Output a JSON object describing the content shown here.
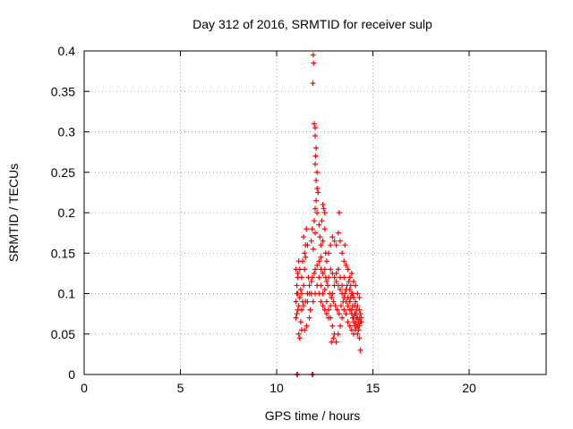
{
  "chart_data": {
    "type": "scatter",
    "title": "Day 312 of 2016, SRMTID for receiver sulp",
    "xlabel": "GPS time / hours",
    "ylabel": "SRMTID / TECUs",
    "xlim": [
      0,
      24
    ],
    "ylim": [
      0,
      0.4
    ],
    "x_ticks": [
      0,
      5,
      10,
      15,
      20
    ],
    "x_tick_labels": [
      "0",
      "5",
      "10",
      "15",
      "20"
    ],
    "y_ticks": [
      0,
      0.05,
      0.1,
      0.15,
      0.2,
      0.25,
      0.3,
      0.35,
      0.4
    ],
    "y_tick_labels": [
      "0",
      "0.05",
      "0.1",
      "0.15",
      "0.2",
      "0.25",
      "0.3",
      "0.35",
      "0.4"
    ],
    "grid": true,
    "marker": "+",
    "color": "#ff0000",
    "points": [
      [
        11.05,
        0.0
      ],
      [
        11.08,
        0.0
      ],
      [
        11.85,
        0.0
      ],
      [
        11.88,
        0.0
      ],
      [
        11.0,
        0.07
      ],
      [
        11.05,
        0.075
      ],
      [
        11.1,
        0.08
      ],
      [
        11.0,
        0.09
      ],
      [
        11.1,
        0.1
      ],
      [
        11.05,
        0.11
      ],
      [
        11.1,
        0.12
      ],
      [
        11.0,
        0.13
      ],
      [
        11.15,
        0.14
      ],
      [
        11.05,
        0.1
      ],
      [
        11.2,
        0.095
      ],
      [
        11.15,
        0.085
      ],
      [
        11.25,
        0.065
      ],
      [
        11.3,
        0.055
      ],
      [
        11.2,
        0.045
      ],
      [
        11.15,
        0.05
      ],
      [
        11.3,
        0.08
      ],
      [
        11.35,
        0.09
      ],
      [
        11.25,
        0.105
      ],
      [
        11.4,
        0.11
      ],
      [
        11.3,
        0.12
      ],
      [
        11.45,
        0.13
      ],
      [
        11.35,
        0.14
      ],
      [
        11.45,
        0.15
      ],
      [
        11.5,
        0.16
      ],
      [
        11.4,
        0.17
      ],
      [
        11.55,
        0.18
      ],
      [
        11.6,
        0.16
      ],
      [
        11.5,
        0.145
      ],
      [
        11.65,
        0.12
      ],
      [
        11.7,
        0.1
      ],
      [
        11.6,
        0.09
      ],
      [
        11.75,
        0.08
      ],
      [
        11.7,
        0.07
      ],
      [
        11.55,
        0.06
      ],
      [
        11.45,
        0.055
      ],
      [
        11.9,
        0.395
      ],
      [
        11.92,
        0.385
      ],
      [
        11.88,
        0.36
      ],
      [
        11.95,
        0.31
      ],
      [
        12.0,
        0.305
      ],
      [
        12.0,
        0.295
      ],
      [
        12.05,
        0.28
      ],
      [
        12.02,
        0.27
      ],
      [
        12.0,
        0.26
      ],
      [
        12.1,
        0.25
      ],
      [
        12.05,
        0.24
      ],
      [
        12.1,
        0.23
      ],
      [
        12.15,
        0.225
      ],
      [
        12.05,
        0.215
      ],
      [
        12.0,
        0.205
      ],
      [
        12.1,
        0.2
      ],
      [
        11.95,
        0.19
      ],
      [
        12.2,
        0.185
      ],
      [
        11.85,
        0.18
      ],
      [
        12.0,
        0.175
      ],
      [
        11.8,
        0.165
      ],
      [
        12.25,
        0.17
      ],
      [
        11.9,
        0.155
      ],
      [
        12.3,
        0.16
      ],
      [
        12.4,
        0.21
      ],
      [
        12.45,
        0.205
      ],
      [
        12.5,
        0.2
      ],
      [
        12.35,
        0.19
      ],
      [
        12.5,
        0.18
      ],
      [
        12.4,
        0.165
      ],
      [
        12.55,
        0.15
      ],
      [
        12.3,
        0.145
      ],
      [
        12.2,
        0.14
      ],
      [
        12.1,
        0.135
      ],
      [
        12.0,
        0.13
      ],
      [
        11.95,
        0.125
      ],
      [
        11.85,
        0.12
      ],
      [
        11.8,
        0.115
      ],
      [
        12.2,
        0.12
      ],
      [
        12.3,
        0.11
      ],
      [
        12.4,
        0.1
      ],
      [
        12.5,
        0.105
      ],
      [
        12.6,
        0.115
      ],
      [
        12.7,
        0.12
      ],
      [
        12.8,
        0.13
      ],
      [
        12.9,
        0.125
      ],
      [
        13.0,
        0.12
      ],
      [
        13.1,
        0.115
      ],
      [
        13.2,
        0.11
      ],
      [
        13.3,
        0.105
      ],
      [
        13.4,
        0.1
      ],
      [
        13.5,
        0.095
      ],
      [
        13.6,
        0.09
      ],
      [
        13.7,
        0.085
      ],
      [
        13.8,
        0.08
      ],
      [
        13.9,
        0.075
      ],
      [
        14.0,
        0.07
      ],
      [
        14.1,
        0.065
      ],
      [
        14.2,
        0.06
      ],
      [
        14.3,
        0.07
      ],
      [
        14.35,
        0.075
      ],
      [
        14.4,
        0.065
      ],
      [
        14.3,
        0.08
      ],
      [
        14.2,
        0.085
      ],
      [
        14.1,
        0.09
      ],
      [
        14.0,
        0.095
      ],
      [
        13.9,
        0.1
      ],
      [
        13.8,
        0.105
      ],
      [
        12.6,
        0.09
      ],
      [
        12.7,
        0.08
      ],
      [
        12.8,
        0.07
      ],
      [
        12.9,
        0.06
      ],
      [
        13.0,
        0.05
      ],
      [
        12.95,
        0.045
      ],
      [
        12.85,
        0.04
      ],
      [
        13.1,
        0.04
      ],
      [
        13.2,
        0.05
      ],
      [
        13.3,
        0.06
      ],
      [
        13.4,
        0.07
      ],
      [
        13.5,
        0.08
      ],
      [
        13.6,
        0.075
      ],
      [
        13.7,
        0.065
      ],
      [
        13.8,
        0.06
      ],
      [
        13.9,
        0.055
      ],
      [
        14.0,
        0.05
      ],
      [
        14.1,
        0.055
      ],
      [
        14.2,
        0.05
      ],
      [
        14.3,
        0.045
      ],
      [
        14.35,
        0.03
      ],
      [
        14.25,
        0.065
      ],
      [
        14.15,
        0.07
      ],
      [
        14.05,
        0.075
      ],
      [
        13.95,
        0.085
      ],
      [
        12.6,
        0.14
      ],
      [
        12.7,
        0.15
      ],
      [
        12.8,
        0.16
      ],
      [
        12.9,
        0.17
      ],
      [
        13.0,
        0.165
      ],
      [
        13.1,
        0.16
      ],
      [
        13.2,
        0.175
      ],
      [
        13.25,
        0.2
      ],
      [
        13.3,
        0.165
      ],
      [
        13.4,
        0.15
      ],
      [
        13.5,
        0.14
      ],
      [
        13.55,
        0.16
      ],
      [
        13.6,
        0.135
      ],
      [
        13.7,
        0.13
      ],
      [
        13.8,
        0.12
      ],
      [
        13.9,
        0.125
      ],
      [
        14.0,
        0.115
      ],
      [
        14.1,
        0.11
      ],
      [
        14.2,
        0.1
      ],
      [
        14.3,
        0.095
      ],
      [
        12.3,
        0.13
      ],
      [
        12.4,
        0.125
      ],
      [
        12.5,
        0.13
      ],
      [
        12.55,
        0.12
      ],
      [
        12.65,
        0.11
      ],
      [
        12.75,
        0.1
      ],
      [
        12.85,
        0.095
      ],
      [
        12.95,
        0.09
      ],
      [
        13.05,
        0.085
      ],
      [
        13.15,
        0.08
      ],
      [
        13.25,
        0.075
      ],
      [
        13.35,
        0.085
      ],
      [
        13.45,
        0.09
      ],
      [
        13.55,
        0.1
      ],
      [
        13.65,
        0.11
      ],
      [
        13.75,
        0.115
      ],
      [
        13.85,
        0.11
      ],
      [
        13.95,
        0.1
      ],
      [
        14.05,
        0.085
      ],
      [
        14.15,
        0.08
      ],
      [
        11.1,
        0.125
      ],
      [
        11.2,
        0.13
      ],
      [
        11.3,
        0.1
      ],
      [
        11.4,
        0.085
      ],
      [
        11.5,
        0.09
      ],
      [
        11.6,
        0.1
      ],
      [
        11.7,
        0.11
      ],
      [
        11.8,
        0.1
      ],
      [
        11.9,
        0.09
      ],
      [
        12.0,
        0.1
      ],
      [
        12.1,
        0.11
      ],
      [
        12.2,
        0.1
      ],
      [
        12.3,
        0.09
      ],
      [
        12.4,
        0.085
      ],
      [
        12.5,
        0.08
      ],
      [
        12.6,
        0.075
      ],
      [
        12.7,
        0.07
      ],
      [
        12.8,
        0.085
      ],
      [
        12.9,
        0.1
      ],
      [
        13.0,
        0.11
      ],
      [
        13.1,
        0.125
      ],
      [
        13.2,
        0.13
      ],
      [
        13.3,
        0.12
      ],
      [
        13.4,
        0.11
      ],
      [
        13.5,
        0.12
      ],
      [
        13.6,
        0.105
      ],
      [
        13.7,
        0.095
      ],
      [
        13.8,
        0.09
      ],
      [
        13.9,
        0.08
      ],
      [
        14.0,
        0.065
      ],
      [
        14.1,
        0.075
      ],
      [
        14.2,
        0.07
      ],
      [
        14.3,
        0.06
      ],
      [
        14.4,
        0.07
      ],
      [
        14.35,
        0.065
      ],
      [
        14.25,
        0.055
      ],
      [
        14.15,
        0.06
      ],
      [
        14.05,
        0.06
      ],
      [
        13.95,
        0.07
      ],
      [
        13.85,
        0.095
      ]
    ]
  }
}
